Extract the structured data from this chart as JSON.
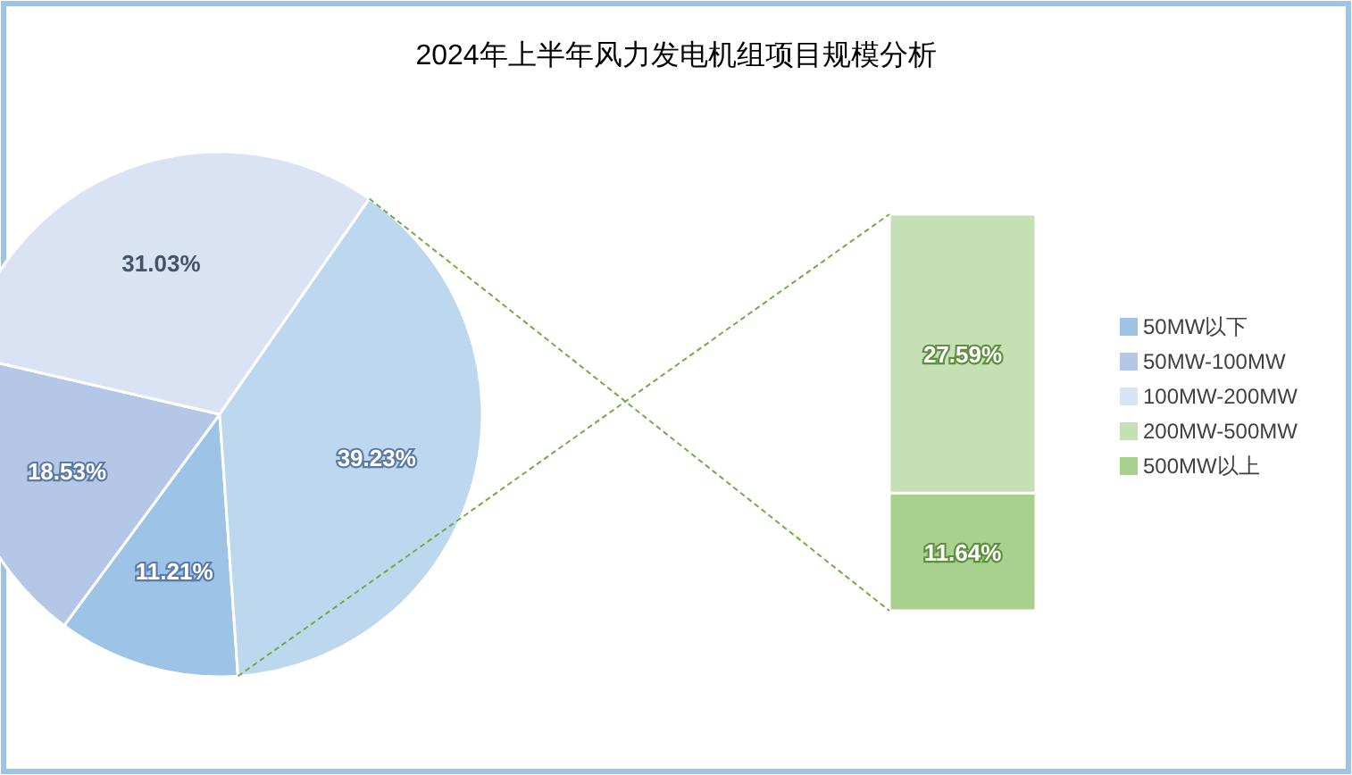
{
  "chart_data": [
    {
      "type": "pie",
      "title": "2024年上半年风力发电机组项目规模分析",
      "categories": [
        "50MW以下",
        "50MW-100MW",
        "100MW-200MW",
        null
      ],
      "values": [
        11.21,
        18.53,
        31.03,
        39.23
      ],
      "value_labels": [
        "11.21%",
        "18.53%",
        "31.03%",
        "39.23%"
      ],
      "colors": [
        "#9dc3e6",
        "#b4c7e7",
        "#dae3f3",
        "#bdd7ee"
      ],
      "legend": "right"
    },
    {
      "type": "bar",
      "stacked": true,
      "categories": [
        null
      ],
      "series": [
        {
          "name": "500MW以上",
          "color": "#a9d18e",
          "values": [
            11.64
          ],
          "value_labels": [
            "11.64%"
          ]
        },
        {
          "name": "200MW-500MW",
          "color": "#c5e0b4",
          "values": [
            27.59
          ],
          "value_labels": [
            "27.59%"
          ]
        }
      ],
      "legend": "right"
    }
  ]
}
